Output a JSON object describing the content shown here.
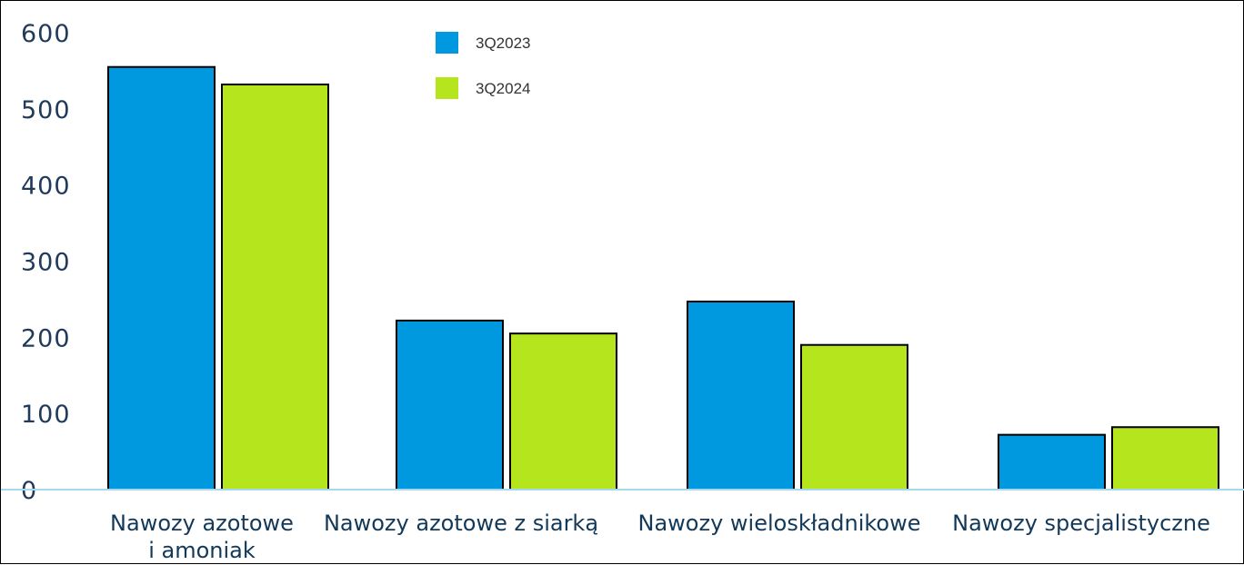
{
  "chart_data": {
    "type": "bar",
    "categories": [
      [
        "Nawozy azotowe",
        "i amoniak"
      ],
      [
        "Nawozy azotowe z siarką"
      ],
      [
        "Nawozy wieloskładnikowe"
      ],
      [
        "Nawozy specjalistyczne"
      ]
    ],
    "series": [
      {
        "name": "3Q2023",
        "color": "#0099e0",
        "values": [
          555,
          222,
          247,
          72
        ]
      },
      {
        "name": "3Q2024",
        "color": "#b5e51d",
        "values": [
          532,
          205,
          190,
          82
        ]
      }
    ],
    "ylim": [
      0,
      600
    ],
    "yticks": [
      "600",
      "500",
      "400",
      "300",
      "200",
      "100",
      "0"
    ],
    "legend_position": "top-center",
    "grid": false
  }
}
